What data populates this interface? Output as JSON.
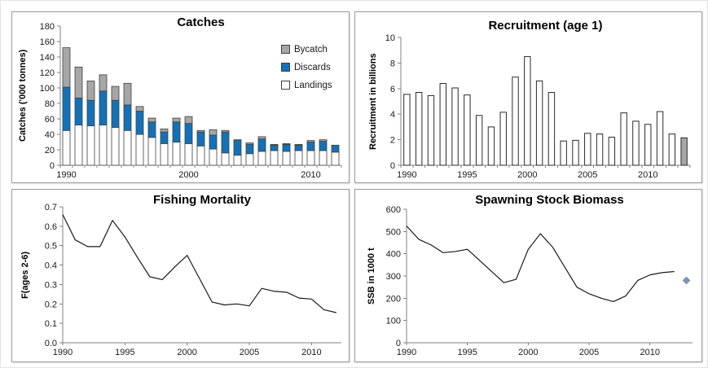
{
  "figure": {
    "background": "#ffffff",
    "panel_border_color": "#9a9a9a"
  },
  "chart_data": [
    {
      "type": "stacked-bar",
      "title": "Catches",
      "ylabel": "Catches ('000 tonnes)",
      "ylim": [
        0,
        180
      ],
      "ytick": 20,
      "categories": [
        1990,
        1991,
        1992,
        1993,
        1994,
        1995,
        1996,
        1997,
        1998,
        1999,
        2000,
        2001,
        2002,
        2003,
        2004,
        2005,
        2006,
        2007,
        2008,
        2009,
        2010,
        2011,
        2012
      ],
      "xtick_labels": [
        1990,
        2000,
        2010
      ],
      "axis_color": "#808080",
      "bar_stroke": "#404040",
      "legend_position": "right-inside",
      "legend": [
        {
          "label": "Bycatch",
          "color": "#A6A6A6"
        },
        {
          "label": "Discards",
          "color": "#1371B8"
        },
        {
          "label": "Landings",
          "color": "#FFFFFF"
        }
      ],
      "series": [
        {
          "name": "Landings",
          "color": "#FFFFFF",
          "values": [
            45,
            52,
            51,
            52,
            49,
            45,
            40,
            36,
            28,
            30,
            28,
            25,
            21,
            16,
            13,
            15,
            18,
            19,
            18,
            19,
            19,
            19,
            17
          ]
        },
        {
          "name": "Discards",
          "color": "#1371B8",
          "values": [
            56,
            35,
            33,
            44,
            35,
            33,
            30,
            20,
            15,
            26,
            26,
            18,
            18,
            27,
            19,
            12,
            16,
            7,
            9,
            7,
            11,
            12,
            9
          ]
        },
        {
          "name": "Bycatch",
          "color": "#A6A6A6",
          "values": [
            51,
            40,
            25,
            21,
            18,
            28,
            6,
            5,
            4,
            5,
            9,
            2,
            7,
            2,
            1,
            2,
            3,
            1,
            1,
            1,
            2,
            2,
            0
          ]
        }
      ]
    },
    {
      "type": "bar",
      "title": "Recruitment (age 1)",
      "ylabel": "Recruitment in billions",
      "ylim": [
        0,
        10
      ],
      "ytick": 2,
      "categories": [
        1990,
        1991,
        1992,
        1993,
        1994,
        1995,
        1996,
        1997,
        1998,
        1999,
        2000,
        2001,
        2002,
        2003,
        2004,
        2005,
        2006,
        2007,
        2008,
        2009,
        2010,
        2011,
        2012,
        2013
      ],
      "xtick_labels": [
        1990,
        1995,
        2000,
        2005,
        2010
      ],
      "axis_color": "#808080",
      "bar_color": "#FFFFFF",
      "last_bar_color": "#A6A6A6",
      "bar_stroke": "#2b2b2b",
      "values": [
        5.55,
        5.7,
        5.45,
        6.4,
        6.05,
        5.5,
        3.9,
        3.0,
        4.15,
        6.9,
        8.5,
        6.6,
        5.7,
        1.9,
        1.95,
        2.5,
        2.45,
        2.2,
        4.1,
        3.45,
        3.2,
        4.2,
        2.45,
        2.15
      ]
    },
    {
      "type": "line",
      "title": "Fishing Mortality",
      "ylabel": "F(ages 2-6)",
      "ylim": [
        0,
        0.7
      ],
      "ytick": 0.1,
      "ydecimals": 1,
      "xlim": [
        1990,
        2012.4
      ],
      "x": [
        1990,
        1991,
        1992,
        1993,
        1994,
        1995,
        1996,
        1997,
        1998,
        1999,
        2000,
        2001,
        2002,
        2003,
        2004,
        2005,
        2006,
        2007,
        2008,
        2009,
        2010,
        2011,
        2012
      ],
      "xtick_labels": [
        1990,
        1995,
        2000,
        2005,
        2010
      ],
      "axis_color": "#808080",
      "line_color": "#1a1a1a",
      "values": [
        0.66,
        0.53,
        0.495,
        0.495,
        0.63,
        0.545,
        0.44,
        0.34,
        0.325,
        0.39,
        0.45,
        0.33,
        0.21,
        0.195,
        0.2,
        0.19,
        0.28,
        0.265,
        0.26,
        0.23,
        0.225,
        0.17,
        0.155
      ]
    },
    {
      "type": "line",
      "title": "Spawning Stock Biomass",
      "ylabel": "SSB in 1000 t",
      "ylim": [
        0,
        600
      ],
      "ytick": 100,
      "xlim": [
        1990,
        2013.5
      ],
      "x": [
        1990,
        1991,
        1992,
        1993,
        1994,
        1995,
        1996,
        1997,
        1998,
        1999,
        2000,
        2001,
        2002,
        2003,
        2004,
        2005,
        2006,
        2007,
        2008,
        2009,
        2010,
        2011,
        2012
      ],
      "xtick_labels": [
        1990,
        1995,
        2000,
        2005,
        2010
      ],
      "axis_color": "#808080",
      "line_color": "#1a1a1a",
      "values": [
        525,
        465,
        440,
        405,
        410,
        420,
        370,
        320,
        270,
        285,
        420,
        490,
        430,
        340,
        250,
        220,
        200,
        185,
        210,
        280,
        305,
        315,
        320
      ],
      "marker": {
        "x": 2013,
        "y": 280,
        "shape": "diamond",
        "color": "#7D96B4"
      }
    }
  ]
}
